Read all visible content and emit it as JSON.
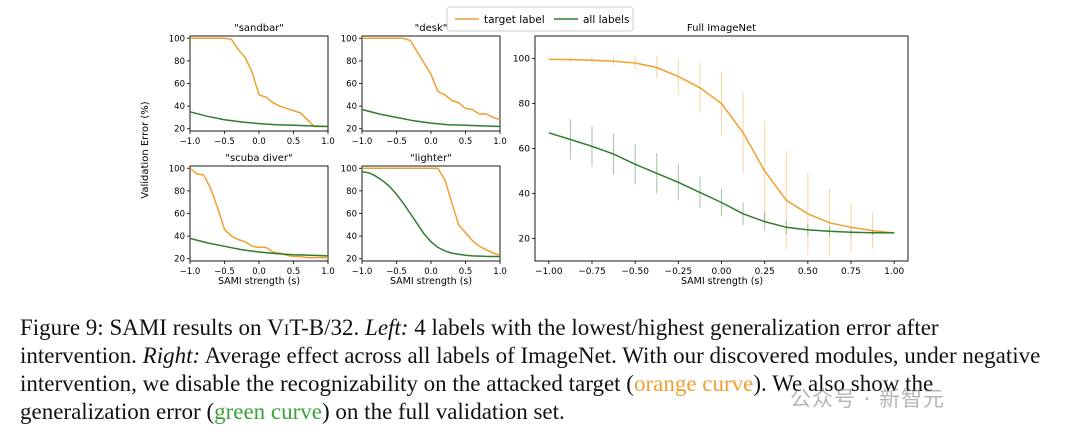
{
  "colors": {
    "target": "#f0a030",
    "all": "#2e7d2e"
  },
  "legend": {
    "target_label": "target label",
    "all_labels": "all labels"
  },
  "shared": {
    "ylabel": "Validation Error (%)",
    "xlabel": "SAMI strength (s)"
  },
  "chart_data": [
    {
      "type": "line",
      "title": "\"sandbar\"",
      "xlim": [
        -1.0,
        1.0
      ],
      "ylim": [
        18,
        102
      ],
      "xticks": [
        "−1.0",
        "−0.5",
        "0.0",
        "0.5",
        "1.0"
      ],
      "yticks": [
        "20",
        "40",
        "60",
        "80",
        "100"
      ],
      "series": [
        {
          "name": "target label",
          "x": [
            -1.0,
            -0.9,
            -0.8,
            -0.7,
            -0.6,
            -0.5,
            -0.4,
            -0.3,
            -0.2,
            -0.1,
            0.0,
            0.1,
            0.2,
            0.3,
            0.4,
            0.5,
            0.6,
            0.7,
            0.8,
            0.9,
            1.0
          ],
          "y": [
            100,
            100,
            100,
            100,
            100,
            100,
            99,
            90,
            83,
            70,
            50,
            48,
            43,
            40,
            38,
            36,
            34,
            28,
            22,
            22,
            22
          ]
        },
        {
          "name": "all labels",
          "x": [
            -1.0,
            -0.75,
            -0.5,
            -0.25,
            0.0,
            0.25,
            0.5,
            0.75,
            1.0
          ],
          "y": [
            35,
            31,
            28,
            26,
            24.5,
            23.5,
            23,
            22.5,
            22
          ]
        }
      ]
    },
    {
      "type": "line",
      "title": "\"desk\"",
      "xlim": [
        -1.0,
        1.0
      ],
      "ylim": [
        18,
        102
      ],
      "xticks": [
        "−1.0",
        "−0.5",
        "0.0",
        "0.5",
        "1.0"
      ],
      "yticks": [
        "20",
        "40",
        "60",
        "80",
        "100"
      ],
      "series": [
        {
          "name": "target label",
          "x": [
            -1.0,
            -0.8,
            -0.6,
            -0.4,
            -0.3,
            -0.2,
            -0.1,
            0.0,
            0.1,
            0.2,
            0.3,
            0.4,
            0.5,
            0.6,
            0.7,
            0.8,
            0.9,
            1.0
          ],
          "y": [
            100,
            100,
            100,
            100,
            98,
            88,
            78,
            68,
            53,
            50,
            45,
            43,
            38,
            37,
            33,
            33,
            30,
            28
          ]
        },
        {
          "name": "all labels",
          "x": [
            -1.0,
            -0.75,
            -0.5,
            -0.25,
            0.0,
            0.25,
            0.5,
            0.75,
            1.0
          ],
          "y": [
            37,
            33,
            30,
            27,
            25,
            23.5,
            23,
            22.5,
            22
          ]
        }
      ]
    },
    {
      "type": "line",
      "title": "\"scuba diver\"",
      "xlim": [
        -1.0,
        1.0
      ],
      "ylim": [
        18,
        102
      ],
      "xticks": [
        "−1.0",
        "−0.5",
        "0.0",
        "0.5",
        "1.0"
      ],
      "yticks": [
        "20",
        "40",
        "60",
        "80",
        "100"
      ],
      "series": [
        {
          "name": "target label",
          "x": [
            -1.0,
            -0.9,
            -0.8,
            -0.7,
            -0.6,
            -0.5,
            -0.4,
            -0.3,
            -0.2,
            -0.1,
            0.0,
            0.1,
            0.2,
            0.3,
            0.4,
            0.5,
            0.6,
            0.7,
            0.8,
            0.9,
            1.0
          ],
          "y": [
            100,
            95,
            94,
            82,
            65,
            46,
            40,
            37,
            35,
            31,
            30,
            30,
            26,
            25,
            23,
            22,
            22,
            21,
            21,
            21,
            21
          ]
        },
        {
          "name": "all labels",
          "x": [
            -1.0,
            -0.75,
            -0.5,
            -0.25,
            0.0,
            0.25,
            0.5,
            0.75,
            1.0
          ],
          "y": [
            38,
            34,
            31,
            28,
            26,
            24.5,
            23.5,
            23,
            22.5
          ]
        }
      ]
    },
    {
      "type": "line",
      "title": "\"lighter\"",
      "xlim": [
        -1.0,
        1.0
      ],
      "ylim": [
        18,
        102
      ],
      "xticks": [
        "−1.0",
        "−0.5",
        "0.0",
        "0.5",
        "1.0"
      ],
      "yticks": [
        "20",
        "40",
        "60",
        "80",
        "100"
      ],
      "series": [
        {
          "name": "target label",
          "x": [
            -1.0,
            -0.8,
            -0.6,
            -0.4,
            -0.2,
            0.0,
            0.1,
            0.2,
            0.3,
            0.4,
            0.5,
            0.6,
            0.7,
            0.8,
            0.9,
            1.0
          ],
          "y": [
            100,
            100,
            100,
            100,
            100,
            100,
            100,
            90,
            70,
            50,
            43,
            36,
            31,
            28,
            25,
            23
          ]
        },
        {
          "name": "all labels",
          "x": [
            -1.0,
            -0.9,
            -0.8,
            -0.7,
            -0.6,
            -0.5,
            -0.4,
            -0.3,
            -0.2,
            -0.1,
            0.0,
            0.1,
            0.2,
            0.3,
            0.4,
            0.5,
            0.6,
            0.7,
            0.8,
            0.9,
            1.0
          ],
          "y": [
            97,
            96,
            93,
            89,
            84,
            77,
            69,
            60,
            51,
            42,
            35,
            30,
            27,
            25,
            24,
            23,
            22.5,
            22.3,
            22.1,
            22,
            22
          ]
        }
      ]
    },
    {
      "type": "line",
      "title": "Full ImageNet",
      "xlim": [
        -1.08,
        1.08
      ],
      "ylim": [
        10,
        110
      ],
      "xticks": [
        "−1.00",
        "−0.75",
        "−0.50",
        "−0.25",
        "0.00",
        "0.25",
        "0.50",
        "0.75",
        "1.00"
      ],
      "yticks": [
        "20",
        "40",
        "60",
        "80",
        "100"
      ],
      "series": [
        {
          "name": "target label",
          "x": [
            -1.0,
            -0.875,
            -0.75,
            -0.625,
            -0.5,
            -0.375,
            -0.25,
            -0.125,
            0.0,
            0.125,
            0.25,
            0.375,
            0.5,
            0.625,
            0.75,
            0.875,
            1.0
          ],
          "y": [
            99.7,
            99.5,
            99.2,
            98.8,
            98,
            96,
            92,
            87,
            80,
            67,
            50,
            37,
            31,
            27,
            25,
            23.5,
            22.5
          ],
          "err": [
            0,
            1,
            1.5,
            2,
            3,
            5,
            8,
            11,
            14,
            18,
            22,
            22,
            18,
            15,
            11,
            8,
            0
          ]
        },
        {
          "name": "all labels",
          "x": [
            -1.0,
            -0.875,
            -0.75,
            -0.625,
            -0.5,
            -0.375,
            -0.25,
            -0.125,
            0.0,
            0.125,
            0.25,
            0.375,
            0.5,
            0.625,
            0.75,
            0.875,
            1.0
          ],
          "y": [
            67,
            64,
            61,
            57.5,
            53,
            49,
            45,
            40.5,
            36,
            31,
            27.5,
            25,
            23.8,
            23.2,
            22.8,
            22.6,
            22.5
          ],
          "err": [
            0,
            9,
            9,
            9,
            9,
            9,
            8,
            7,
            6,
            5,
            4,
            3,
            2.5,
            2,
            1.5,
            1,
            0
          ]
        }
      ]
    }
  ],
  "caption": {
    "label": "Figure 9: SAMI results on ",
    "model": "ViT-B/32",
    "p1": ". ",
    "left_label": "Left:",
    "p2": " 4 labels with the lowest/highest generalization error after intervention. ",
    "right_label": "Right:",
    "p3": " Average effect across all labels of ImageNet. With our discovered modules, under negative intervention, we disable the recognizability on the attacked target (",
    "orange_text": "orange curve",
    "p4": "). We also show the generalization error (",
    "green_text": "green curve",
    "p5": ") on the full validation set."
  },
  "watermark": "公众号 · 新智元"
}
